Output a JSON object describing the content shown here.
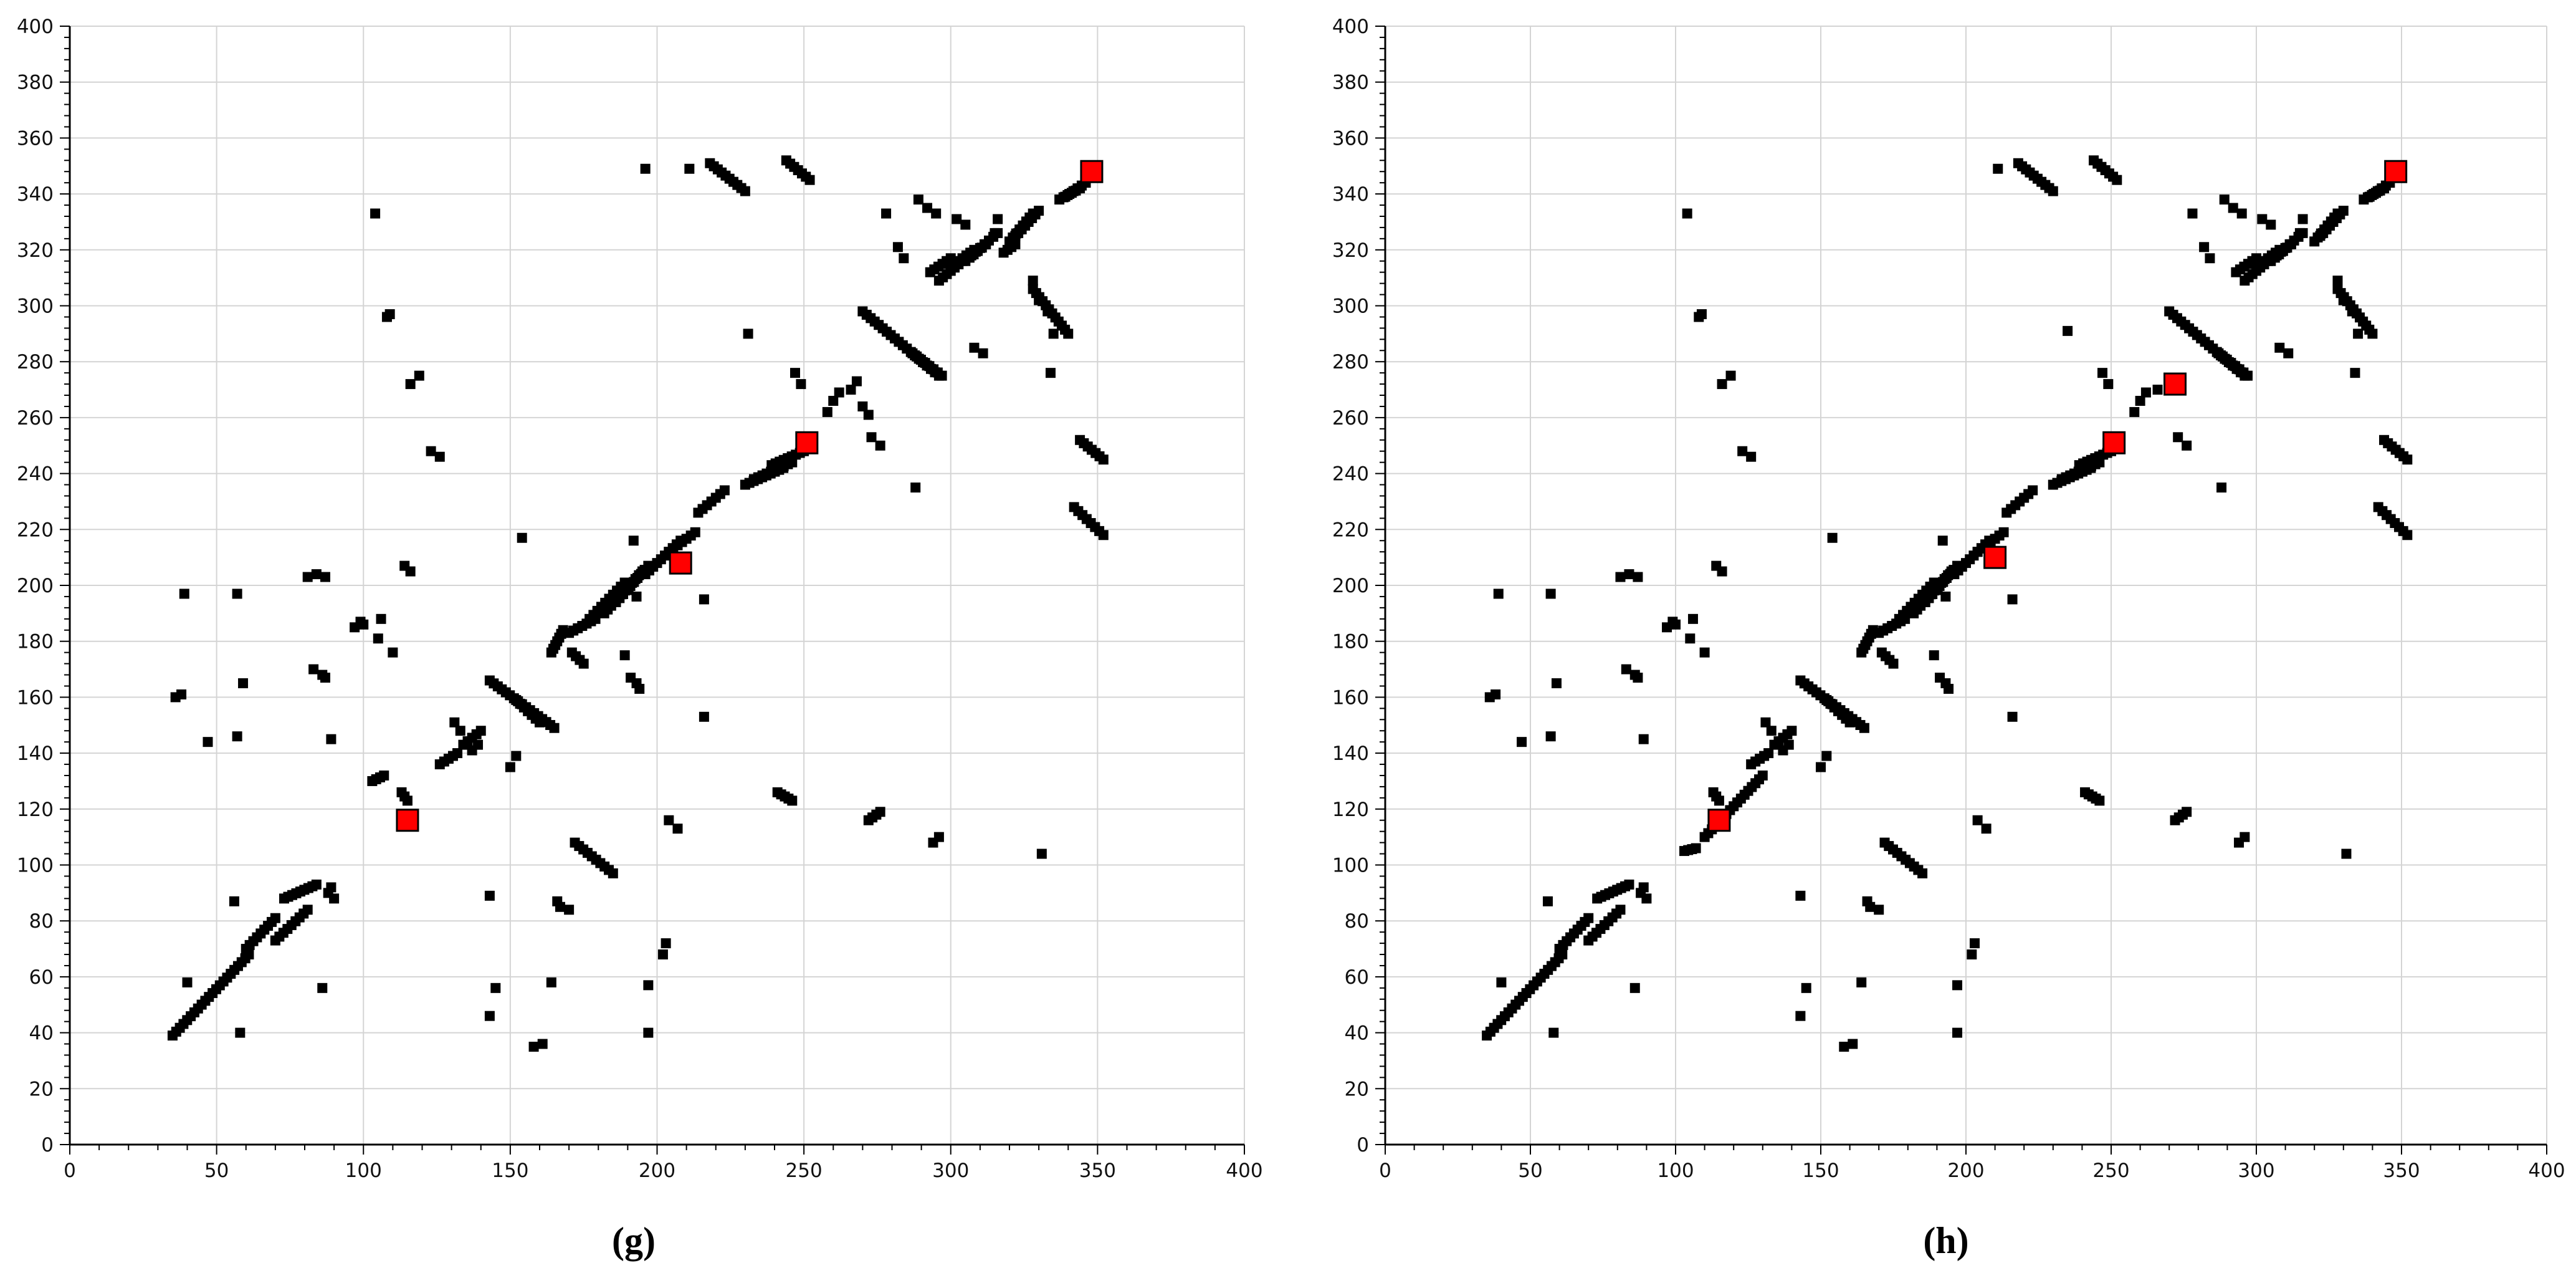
{
  "colors": {
    "background": "#ffffff",
    "grid": "#d4d4d4",
    "axis": "#000000",
    "point": "#000000",
    "highlight_fill": "#ff0000",
    "highlight_stroke": "#000000"
  },
  "chart_data": [
    {
      "type": "scatter",
      "caption": "(g)",
      "title": "",
      "xlabel": "",
      "ylabel": "",
      "xlim": [
        0,
        400
      ],
      "ylim": [
        0,
        400
      ],
      "xticks": [
        0,
        50,
        100,
        150,
        200,
        250,
        300,
        350,
        400
      ],
      "yticks": [
        0,
        20,
        40,
        60,
        80,
        100,
        120,
        140,
        160,
        180,
        200,
        220,
        240,
        260,
        280,
        300,
        320,
        340,
        360,
        380,
        400
      ],
      "grid": true,
      "segments": [
        [
          35,
          39,
          61,
          68
        ],
        [
          60,
          70,
          70,
          81
        ],
        [
          70,
          73,
          81,
          84
        ],
        [
          73,
          88,
          84,
          93
        ],
        [
          103,
          130,
          107,
          132
        ],
        [
          113,
          126,
          115,
          123
        ],
        [
          126,
          136,
          132,
          140
        ],
        [
          134,
          143,
          140,
          148
        ],
        [
          164,
          176,
          168,
          184
        ],
        [
          170,
          183,
          179,
          188
        ],
        [
          177,
          188,
          189,
          201
        ],
        [
          182,
          190,
          195,
          205
        ],
        [
          186,
          194,
          197,
          207
        ],
        [
          196,
          204,
          208,
          216
        ],
        [
          204,
          212,
          213,
          219
        ],
        [
          214,
          226,
          223,
          234
        ],
        [
          230,
          236,
          243,
          242
        ],
        [
          233,
          238,
          246,
          244
        ],
        [
          239,
          243,
          250,
          248
        ],
        [
          293,
          312,
          300,
          317
        ],
        [
          296,
          309,
          304,
          316
        ],
        [
          300,
          314,
          308,
          320
        ],
        [
          305,
          316,
          312,
          322
        ],
        [
          307,
          318,
          316,
          326
        ],
        [
          318,
          319,
          322,
          322
        ],
        [
          320,
          323,
          328,
          333
        ],
        [
          323,
          326,
          330,
          334
        ],
        [
          337,
          338,
          344,
          342
        ],
        [
          339,
          339,
          346,
          344
        ],
        [
          143,
          166,
          165,
          149
        ],
        [
          152,
          159,
          160,
          151
        ],
        [
          270,
          298,
          296,
          275
        ],
        [
          287,
          283,
          297,
          275
        ],
        [
          328,
          306,
          340,
          290
        ],
        [
          344,
          252,
          352,
          245
        ],
        [
          342,
          228,
          352,
          218
        ],
        [
          218,
          351,
          230,
          341
        ],
        [
          244,
          352,
          252,
          345
        ],
        [
          171,
          176,
          175,
          172
        ],
        [
          172,
          108,
          185,
          97
        ],
        [
          241,
          126,
          246,
          123
        ],
        [
          272,
          116,
          276,
          119
        ],
        [
          294,
          108,
          296,
          110
        ]
      ],
      "points": [
        [
          104,
          333
        ],
        [
          108,
          296
        ],
        [
          109,
          297
        ],
        [
          116,
          272
        ],
        [
          119,
          275
        ],
        [
          123,
          248
        ],
        [
          126,
          246
        ],
        [
          106,
          188
        ],
        [
          105,
          181
        ],
        [
          110,
          176
        ],
        [
          114,
          207
        ],
        [
          116,
          205
        ],
        [
          97,
          185
        ],
        [
          99,
          187
        ],
        [
          100,
          186
        ],
        [
          81,
          203
        ],
        [
          84,
          204
        ],
        [
          87,
          203
        ],
        [
          83,
          170
        ],
        [
          86,
          168
        ],
        [
          87,
          167
        ],
        [
          89,
          145
        ],
        [
          57,
          197
        ],
        [
          39,
          197
        ],
        [
          57,
          146
        ],
        [
          59,
          165
        ],
        [
          47,
          144
        ],
        [
          36,
          160
        ],
        [
          38,
          161
        ],
        [
          56,
          87
        ],
        [
          40,
          58
        ],
        [
          58,
          40
        ],
        [
          86,
          56
        ],
        [
          88,
          90
        ],
        [
          89,
          92
        ],
        [
          90,
          88
        ],
        [
          143,
          89
        ],
        [
          145,
          56
        ],
        [
          143,
          46
        ],
        [
          158,
          35
        ],
        [
          161,
          36
        ],
        [
          164,
          58
        ],
        [
          166,
          87
        ],
        [
          167,
          85
        ],
        [
          170,
          84
        ],
        [
          197,
          57
        ],
        [
          197,
          40
        ],
        [
          202,
          68
        ],
        [
          203,
          72
        ],
        [
          204,
          116
        ],
        [
          207,
          113
        ],
        [
          191,
          167
        ],
        [
          193,
          165
        ],
        [
          194,
          163
        ],
        [
          189,
          175
        ],
        [
          193,
          196
        ],
        [
          192,
          216
        ],
        [
          216,
          195
        ],
        [
          216,
          153
        ],
        [
          231,
          290
        ],
        [
          196,
          349
        ],
        [
          211,
          349
        ],
        [
          247,
          276
        ],
        [
          249,
          272
        ],
        [
          258,
          262
        ],
        [
          260,
          266
        ],
        [
          262,
          269
        ],
        [
          266,
          270
        ],
        [
          268,
          273
        ],
        [
          270,
          264
        ],
        [
          272,
          261
        ],
        [
          273,
          253
        ],
        [
          276,
          250
        ],
        [
          278,
          333
        ],
        [
          282,
          321
        ],
        [
          284,
          317
        ],
        [
          288,
          235
        ],
        [
          289,
          338
        ],
        [
          292,
          335
        ],
        [
          295,
          333
        ],
        [
          302,
          331
        ],
        [
          305,
          329
        ],
        [
          308,
          285
        ],
        [
          311,
          283
        ],
        [
          315,
          326
        ],
        [
          316,
          331
        ],
        [
          322,
          325
        ],
        [
          328,
          309
        ],
        [
          330,
          302
        ],
        [
          333,
          298
        ],
        [
          334,
          276
        ],
        [
          335,
          290
        ],
        [
          331,
          104
        ],
        [
          154,
          217
        ],
        [
          131,
          151
        ],
        [
          133,
          148
        ],
        [
          137,
          141
        ],
        [
          139,
          143
        ],
        [
          150,
          135
        ],
        [
          152,
          139
        ]
      ],
      "highlighted_points": [
        [
          115,
          116
        ],
        [
          208,
          208
        ],
        [
          251,
          251
        ],
        [
          348,
          348
        ]
      ]
    },
    {
      "type": "scatter",
      "caption": "(h)",
      "title": "",
      "xlabel": "",
      "ylabel": "",
      "xlim": [
        0,
        400
      ],
      "ylim": [
        0,
        400
      ],
      "xticks": [
        0,
        50,
        100,
        150,
        200,
        250,
        300,
        350,
        400
      ],
      "yticks": [
        0,
        20,
        40,
        60,
        80,
        100,
        120,
        140,
        160,
        180,
        200,
        220,
        240,
        260,
        280,
        300,
        320,
        340,
        360,
        380,
        400
      ],
      "grid": true,
      "segments": [
        [
          35,
          39,
          61,
          68
        ],
        [
          60,
          70,
          70,
          81
        ],
        [
          70,
          73,
          81,
          84
        ],
        [
          73,
          88,
          84,
          93
        ],
        [
          103,
          105,
          107,
          106
        ],
        [
          110,
          110,
          130,
          132
        ],
        [
          113,
          126,
          115,
          123
        ],
        [
          126,
          136,
          132,
          140
        ],
        [
          134,
          143,
          140,
          148
        ],
        [
          164,
          176,
          168,
          184
        ],
        [
          170,
          183,
          179,
          188
        ],
        [
          177,
          188,
          189,
          201
        ],
        [
          182,
          190,
          195,
          205
        ],
        [
          186,
          194,
          197,
          207
        ],
        [
          196,
          204,
          208,
          216
        ],
        [
          204,
          212,
          213,
          219
        ],
        [
          214,
          226,
          223,
          234
        ],
        [
          230,
          236,
          243,
          242
        ],
        [
          233,
          238,
          246,
          244
        ],
        [
          239,
          243,
          250,
          248
        ],
        [
          293,
          312,
          300,
          317
        ],
        [
          296,
          309,
          304,
          316
        ],
        [
          300,
          314,
          308,
          320
        ],
        [
          305,
          316,
          312,
          322
        ],
        [
          307,
          318,
          316,
          326
        ],
        [
          320,
          323,
          328,
          333
        ],
        [
          323,
          326,
          330,
          334
        ],
        [
          337,
          338,
          344,
          342
        ],
        [
          339,
          339,
          346,
          344
        ],
        [
          143,
          166,
          165,
          149
        ],
        [
          152,
          159,
          160,
          151
        ],
        [
          270,
          298,
          296,
          275
        ],
        [
          287,
          283,
          297,
          275
        ],
        [
          328,
          306,
          340,
          290
        ],
        [
          344,
          252,
          352,
          245
        ],
        [
          342,
          228,
          352,
          218
        ],
        [
          218,
          351,
          230,
          341
        ],
        [
          244,
          352,
          252,
          345
        ],
        [
          171,
          176,
          175,
          172
        ],
        [
          172,
          108,
          185,
          97
        ],
        [
          241,
          126,
          246,
          123
        ],
        [
          272,
          116,
          276,
          119
        ],
        [
          294,
          108,
          296,
          110
        ]
      ],
      "points": [
        [
          104,
          333
        ],
        [
          108,
          296
        ],
        [
          109,
          297
        ],
        [
          116,
          272
        ],
        [
          119,
          275
        ],
        [
          123,
          248
        ],
        [
          126,
          246
        ],
        [
          106,
          188
        ],
        [
          105,
          181
        ],
        [
          110,
          176
        ],
        [
          114,
          207
        ],
        [
          116,
          205
        ],
        [
          97,
          185
        ],
        [
          99,
          187
        ],
        [
          100,
          186
        ],
        [
          81,
          203
        ],
        [
          84,
          204
        ],
        [
          87,
          203
        ],
        [
          83,
          170
        ],
        [
          86,
          168
        ],
        [
          87,
          167
        ],
        [
          89,
          145
        ],
        [
          57,
          197
        ],
        [
          39,
          197
        ],
        [
          57,
          146
        ],
        [
          59,
          165
        ],
        [
          47,
          144
        ],
        [
          36,
          160
        ],
        [
          38,
          161
        ],
        [
          56,
          87
        ],
        [
          40,
          58
        ],
        [
          58,
          40
        ],
        [
          86,
          56
        ],
        [
          88,
          90
        ],
        [
          89,
          92
        ],
        [
          90,
          88
        ],
        [
          143,
          89
        ],
        [
          145,
          56
        ],
        [
          143,
          46
        ],
        [
          158,
          35
        ],
        [
          161,
          36
        ],
        [
          164,
          58
        ],
        [
          166,
          87
        ],
        [
          167,
          85
        ],
        [
          170,
          84
        ],
        [
          197,
          57
        ],
        [
          197,
          40
        ],
        [
          202,
          68
        ],
        [
          203,
          72
        ],
        [
          204,
          116
        ],
        [
          207,
          113
        ],
        [
          191,
          167
        ],
        [
          193,
          165
        ],
        [
          194,
          163
        ],
        [
          189,
          175
        ],
        [
          193,
          196
        ],
        [
          192,
          216
        ],
        [
          216,
          195
        ],
        [
          216,
          153
        ],
        [
          235,
          291
        ],
        [
          211,
          349
        ],
        [
          247,
          276
        ],
        [
          249,
          272
        ],
        [
          258,
          262
        ],
        [
          260,
          266
        ],
        [
          262,
          269
        ],
        [
          266,
          270
        ],
        [
          273,
          253
        ],
        [
          276,
          250
        ],
        [
          278,
          333
        ],
        [
          282,
          321
        ],
        [
          284,
          317
        ],
        [
          288,
          235
        ],
        [
          289,
          338
        ],
        [
          292,
          335
        ],
        [
          295,
          333
        ],
        [
          302,
          331
        ],
        [
          305,
          329
        ],
        [
          308,
          285
        ],
        [
          311,
          283
        ],
        [
          315,
          326
        ],
        [
          316,
          331
        ],
        [
          322,
          325
        ],
        [
          328,
          309
        ],
        [
          330,
          302
        ],
        [
          333,
          298
        ],
        [
          334,
          276
        ],
        [
          335,
          290
        ],
        [
          331,
          104
        ],
        [
          154,
          217
        ],
        [
          131,
          151
        ],
        [
          133,
          148
        ],
        [
          137,
          141
        ],
        [
          139,
          143
        ],
        [
          150,
          135
        ],
        [
          152,
          139
        ]
      ],
      "highlighted_points": [
        [
          115,
          116
        ],
        [
          210,
          210
        ],
        [
          251,
          251
        ],
        [
          272,
          272
        ],
        [
          348,
          348
        ]
      ]
    }
  ]
}
